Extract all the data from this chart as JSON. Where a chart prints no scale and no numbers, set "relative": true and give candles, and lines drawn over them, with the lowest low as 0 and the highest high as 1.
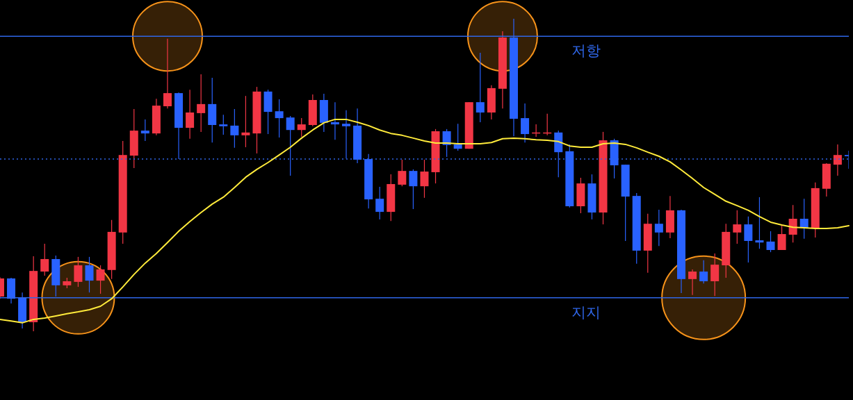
{
  "chart_data": {
    "type": "candlestick",
    "relative": true,
    "categories": [
      null,
      null,
      null,
      null,
      null,
      null,
      null,
      null,
      null,
      null,
      null,
      null,
      null,
      null,
      null,
      null,
      null,
      null,
      null,
      null,
      null,
      null,
      null,
      null,
      null,
      null,
      null,
      null,
      null,
      null,
      null,
      null,
      null,
      null,
      null,
      null,
      null,
      null,
      null,
      null,
      null,
      null,
      null,
      null,
      null,
      null,
      null,
      null,
      null,
      null,
      null,
      null,
      null,
      null,
      null,
      null,
      null,
      null,
      null,
      null,
      null,
      null,
      null,
      null,
      null,
      null,
      null,
      null,
      null,
      null,
      null,
      null,
      null,
      null,
      null,
      null,
      null
    ],
    "ohlc": [
      [
        0.111,
        0.173,
        0.104,
        0.169
      ],
      [
        0.169,
        0.171,
        0.089,
        0.104
      ],
      [
        0.107,
        0.124,
        0.009,
        0.029
      ],
      [
        0.029,
        0.24,
        0,
        0.193
      ],
      [
        0.191,
        0.28,
        0.178,
        0.231
      ],
      [
        0.231,
        0.242,
        0.111,
        0.147
      ],
      [
        0.147,
        0.171,
        0.138,
        0.16
      ],
      [
        0.158,
        0.238,
        0.142,
        0.211
      ],
      [
        0.211,
        0.238,
        0.124,
        0.162
      ],
      [
        0.162,
        0.211,
        0.12,
        0.198
      ],
      [
        0.196,
        0.356,
        0.167,
        0.318
      ],
      [
        0.316,
        0.609,
        0.28,
        0.564
      ],
      [
        0.562,
        0.711,
        0.522,
        0.642
      ],
      [
        0.642,
        0.678,
        0.609,
        0.633
      ],
      [
        0.633,
        0.744,
        0.627,
        0.722
      ],
      [
        0.72,
        0.936,
        0.713,
        0.762
      ],
      [
        0.762,
        0.764,
        0.551,
        0.651
      ],
      [
        0.651,
        0.773,
        0.616,
        0.7
      ],
      [
        0.698,
        0.822,
        0.638,
        0.727
      ],
      [
        0.727,
        0.811,
        0.604,
        0.66
      ],
      [
        0.662,
        0.693,
        0.629,
        0.656
      ],
      [
        0.658,
        0.711,
        0.587,
        0.627
      ],
      [
        0.627,
        0.753,
        0.589,
        0.636
      ],
      [
        0.633,
        0.782,
        0.569,
        0.767
      ],
      [
        0.767,
        0.773,
        0.631,
        0.702
      ],
      [
        0.704,
        0.742,
        0.62,
        0.682
      ],
      [
        0.684,
        0.689,
        0.498,
        0.644
      ],
      [
        0.644,
        0.682,
        0.622,
        0.662
      ],
      [
        0.66,
        0.758,
        0.656,
        0.74
      ],
      [
        0.74,
        0.76,
        0.638,
        0.667
      ],
      [
        0.669,
        0.733,
        0.613,
        0.662
      ],
      [
        0.664,
        0.707,
        0.553,
        0.656
      ],
      [
        0.658,
        0.713,
        0.538,
        0.549
      ],
      [
        0.551,
        0.567,
        0.393,
        0.422
      ],
      [
        0.424,
        0.462,
        0.358,
        0.382
      ],
      [
        0.382,
        0.502,
        0.353,
        0.471
      ],
      [
        0.469,
        0.549,
        0.464,
        0.513
      ],
      [
        0.513,
        0.518,
        0.391,
        0.464
      ],
      [
        0.464,
        0.549,
        0.427,
        0.511
      ],
      [
        0.509,
        0.647,
        0.473,
        0.64
      ],
      [
        0.64,
        0.647,
        0.558,
        0.596
      ],
      [
        0.598,
        0.664,
        0.578,
        0.584
      ],
      [
        0.584,
        0.733,
        0.584,
        0.733
      ],
      [
        0.733,
        0.891,
        0.669,
        0.7
      ],
      [
        0.7,
        0.787,
        0.678,
        0.778
      ],
      [
        0.776,
        0.96,
        0.713,
        0.94
      ],
      [
        0.94,
        1,
        0.624,
        0.68
      ],
      [
        0.682,
        0.729,
        0.604,
        0.631
      ],
      [
        0.633,
        0.662,
        0.622,
        0.636
      ],
      [
        0.633,
        0.696,
        0.627,
        0.636
      ],
      [
        0.636,
        0.642,
        0.493,
        0.573
      ],
      [
        0.576,
        0.598,
        0.396,
        0.4
      ],
      [
        0.4,
        0.491,
        0.378,
        0.473
      ],
      [
        0.473,
        0.502,
        0.358,
        0.38
      ],
      [
        0.38,
        0.638,
        0.342,
        0.611
      ],
      [
        0.611,
        0.616,
        0.489,
        0.531
      ],
      [
        0.533,
        0.533,
        0.289,
        0.431
      ],
      [
        0.433,
        0.442,
        0.216,
        0.258
      ],
      [
        0.258,
        0.376,
        0.187,
        0.344
      ],
      [
        0.344,
        0.389,
        0.273,
        0.316
      ],
      [
        0.316,
        0.433,
        0.298,
        0.387
      ],
      [
        0.387,
        0.389,
        0.122,
        0.167
      ],
      [
        0.167,
        0.198,
        0.116,
        0.191
      ],
      [
        0.191,
        0.227,
        0.153,
        0.16
      ],
      [
        0.16,
        0.249,
        0.113,
        0.213
      ],
      [
        0.211,
        0.344,
        0.171,
        0.318
      ],
      [
        0.316,
        0.387,
        0.28,
        0.342
      ],
      [
        0.342,
        0.367,
        0.22,
        0.289
      ],
      [
        0.291,
        0.429,
        0.264,
        0.284
      ],
      [
        0.287,
        0.32,
        0.253,
        0.26
      ],
      [
        0.26,
        0.338,
        0.26,
        0.311
      ],
      [
        0.309,
        0.404,
        0.284,
        0.36
      ],
      [
        0.36,
        0.424,
        0.296,
        0.331
      ],
      [
        0.331,
        0.476,
        0.3,
        0.458
      ],
      [
        0.456,
        0.538,
        0.431,
        0.536
      ],
      [
        0.533,
        0.598,
        0.498,
        0.564
      ],
      [
        0.564,
        0.578,
        0.52,
        0.56
      ]
    ],
    "colors": [
      "#f23645",
      "#2962ff",
      "#2962ff",
      "#f23645",
      "#f23645",
      "#2962ff",
      "#f23645",
      "#f23645",
      "#2962ff",
      "#f23645",
      "#f23645",
      "#f23645",
      "#f23645",
      "#2962ff",
      "#f23645",
      "#f23645",
      "#2962ff",
      "#f23645",
      "#f23645",
      "#2962ff",
      "#2962ff",
      "#2962ff",
      "#f23645",
      "#f23645",
      "#2962ff",
      "#2962ff",
      "#2962ff",
      "#f23645",
      "#f23645",
      "#2962ff",
      "#2962ff",
      "#2962ff",
      "#2962ff",
      "#2962ff",
      "#2962ff",
      "#f23645",
      "#f23645",
      "#2962ff",
      "#f23645",
      "#f23645",
      "#2962ff",
      "#2962ff",
      "#f23645",
      "#2962ff",
      "#f23645",
      "#f23645",
      "#2962ff",
      "#2962ff",
      "#f23645",
      "#f23645",
      "#2962ff",
      "#2962ff",
      "#f23645",
      "#2962ff",
      "#f23645",
      "#2962ff",
      "#2962ff",
      "#2962ff",
      "#f23645",
      "#2962ff",
      "#f23645",
      "#2962ff",
      "#f23645",
      "#2962ff",
      "#f23645",
      "#f23645",
      "#f23645",
      "#2962ff",
      "#2962ff",
      "#2962ff",
      "#f23645",
      "#f23645",
      "#2962ff",
      "#f23645",
      "#f23645",
      "#f23645",
      "#2962ff"
    ],
    "series": [
      {
        "type": "line",
        "color": "#ffeb3b",
        "values": [
          0.038,
          0.033,
          0.027,
          0.038,
          0.042,
          0.049,
          0.056,
          0.062,
          0.069,
          0.08,
          0.104,
          0.142,
          0.182,
          0.218,
          0.249,
          0.284,
          0.32,
          0.351,
          0.38,
          0.407,
          0.429,
          0.46,
          0.493,
          0.518,
          0.54,
          0.564,
          0.589,
          0.618,
          0.644,
          0.667,
          0.678,
          0.678,
          0.669,
          0.658,
          0.644,
          0.633,
          0.627,
          0.618,
          0.609,
          0.602,
          0.602,
          0.6,
          0.6,
          0.6,
          0.604,
          0.616,
          0.618,
          0.616,
          0.613,
          0.611,
          0.607,
          0.593,
          0.589,
          0.589,
          0.6,
          0.602,
          0.598,
          0.587,
          0.573,
          0.56,
          0.542,
          0.516,
          0.489,
          0.46,
          0.438,
          0.416,
          0.402,
          0.387,
          0.367,
          0.349,
          0.34,
          0.333,
          0.331,
          0.329,
          0.329,
          0.331,
          0.338
        ]
      }
    ],
    "ref_lines": [
      {
        "axis": "y",
        "value": 0.944,
        "label": "저항",
        "color": "#2f66e8",
        "line_style": "solid"
      },
      {
        "axis": "y",
        "value": 0.107,
        "label": "지지",
        "color": "#2f66e8",
        "line_style": "solid"
      },
      {
        "axis": "y",
        "value": 0.551,
        "color": "#2f66e8",
        "line_style": "dotted"
      }
    ]
  }
}
